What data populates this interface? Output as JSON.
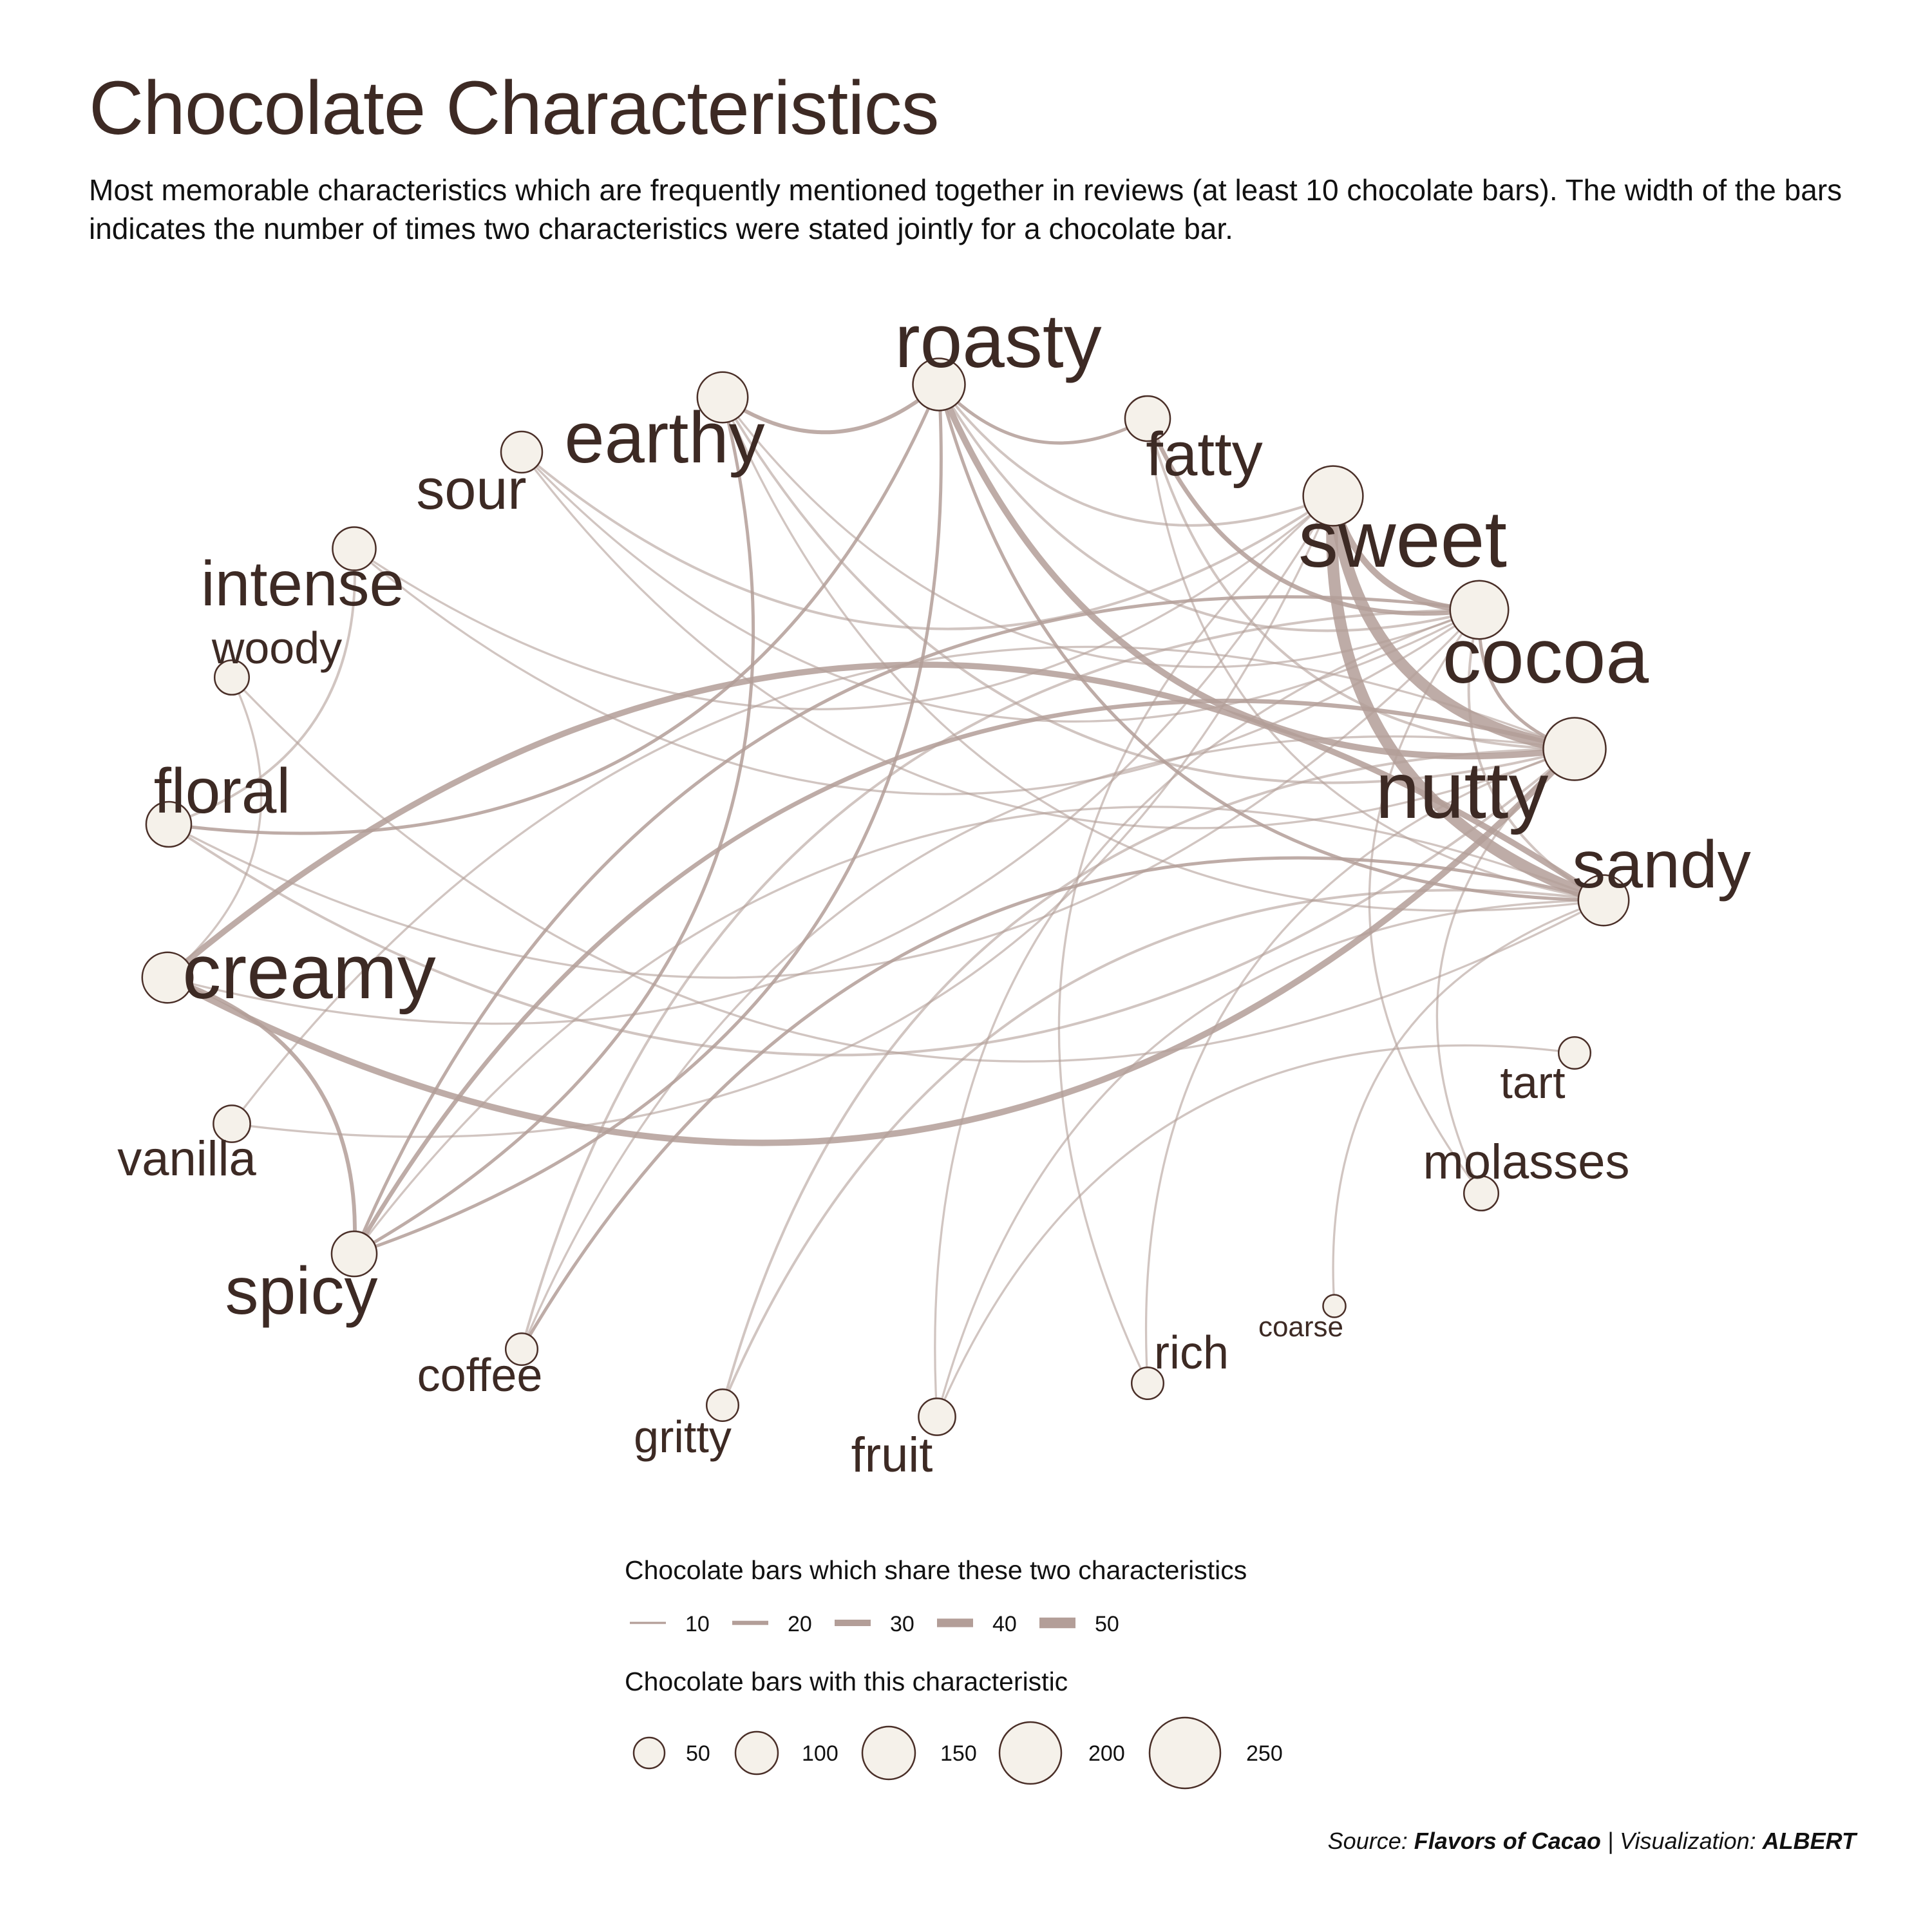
{
  "title": "Chocolate Characteristics",
  "subtitle": "Most memorable characteristics which are frequently mentioned together in reviews (at least 10 chocolate bars). The width of the bars indicates the number of times two characteristics were stated jointly for a chocolate bar.",
  "source": {
    "prefix": "Source: ",
    "dataset": "Flavors of Cacao",
    "separator": " | Visualization: ",
    "author": "ALBERT"
  },
  "colors": {
    "node_fill": "#f5f1ea",
    "node_stroke": "#4a2f28",
    "edge": "#b39e98",
    "text": "#3d2a24"
  },
  "legend": {
    "edge_title": "Chocolate bars which share these two characteristics",
    "edge_items": [
      "10",
      "20",
      "30",
      "40",
      "50"
    ],
    "node_title": "Chocolate bars with this characteristic",
    "node_items": [
      "50",
      "100",
      "150",
      "200",
      "250"
    ]
  },
  "nodes": [
    {
      "id": "roasty",
      "label": "roasty",
      "count": 160
    },
    {
      "id": "earthy",
      "label": "earthy",
      "count": 150
    },
    {
      "id": "fatty",
      "label": "fatty",
      "count": 120
    },
    {
      "id": "sour",
      "label": "sour",
      "count": 100
    },
    {
      "id": "sweet",
      "label": "sweet",
      "count": 210
    },
    {
      "id": "intense",
      "label": "intense",
      "count": 110
    },
    {
      "id": "cocoa",
      "label": "cocoa",
      "count": 200
    },
    {
      "id": "woody",
      "label": "woody",
      "count": 70
    },
    {
      "id": "nutty",
      "label": "nutty",
      "count": 230
    },
    {
      "id": "floral",
      "label": "floral",
      "count": 120
    },
    {
      "id": "sandy",
      "label": "sandy",
      "count": 150
    },
    {
      "id": "creamy",
      "label": "creamy",
      "count": 150
    },
    {
      "id": "tart",
      "label": "tart",
      "count": 60
    },
    {
      "id": "vanilla",
      "label": "vanilla",
      "count": 80
    },
    {
      "id": "molasses",
      "label": "molasses",
      "count": 70
    },
    {
      "id": "spicy",
      "label": "spicy",
      "count": 120
    },
    {
      "id": "coarse",
      "label": "coarse",
      "count": 30
    },
    {
      "id": "coffee",
      "label": "coffee",
      "count": 60
    },
    {
      "id": "rich",
      "label": "rich",
      "count": 60
    },
    {
      "id": "gritty",
      "label": "gritty",
      "count": 60
    },
    {
      "id": "fruit",
      "label": "fruit",
      "count": 80
    }
  ],
  "edges": [
    [
      "sweet",
      "nutty",
      55
    ],
    [
      "sweet",
      "sandy",
      55
    ],
    [
      "roasty",
      "nutty",
      30
    ],
    [
      "sweet",
      "cocoa",
      30
    ],
    [
      "creamy",
      "nutty",
      30
    ],
    [
      "creamy",
      "sandy",
      28
    ],
    [
      "creamy",
      "spicy",
      18
    ],
    [
      "nutty",
      "spicy",
      20
    ],
    [
      "roasty",
      "earthy",
      18
    ],
    [
      "roasty",
      "fatty",
      15
    ],
    [
      "roasty",
      "sandy",
      15
    ],
    [
      "roasty",
      "cocoa",
      12
    ],
    [
      "roasty",
      "spicy",
      15
    ],
    [
      "roasty",
      "sweet",
      12
    ],
    [
      "fatty",
      "cocoa",
      20
    ],
    [
      "fatty",
      "nutty",
      12
    ],
    [
      "earthy",
      "spicy",
      15
    ],
    [
      "earthy",
      "nutty",
      12
    ],
    [
      "earthy",
      "cocoa",
      10
    ],
    [
      "sour",
      "sweet",
      12
    ],
    [
      "intense",
      "floral",
      12
    ],
    [
      "floral",
      "nutty",
      12
    ],
    [
      "floral",
      "roasty",
      15
    ],
    [
      "cocoa",
      "nutty",
      15
    ],
    [
      "cocoa",
      "sandy",
      12
    ],
    [
      "spicy",
      "cocoa",
      15
    ],
    [
      "coffee",
      "cocoa",
      12
    ],
    [
      "coffee",
      "sandy",
      15
    ],
    [
      "gritty",
      "sandy",
      12
    ],
    [
      "gritty",
      "nutty",
      12
    ],
    [
      "fruit",
      "cocoa",
      10
    ],
    [
      "fruit",
      "tart",
      10
    ],
    [
      "rich",
      "nutty",
      10
    ],
    [
      "coarse",
      "sandy",
      10
    ],
    [
      "molasses",
      "nutty",
      10
    ],
    [
      "woody",
      "creamy",
      10
    ],
    [
      "woody",
      "sandy",
      10
    ],
    [
      "intense",
      "sweet",
      10
    ],
    [
      "intense",
      "cocoa",
      10
    ],
    [
      "sour",
      "cocoa",
      10
    ],
    [
      "vanilla",
      "nutty",
      10
    ],
    [
      "vanilla",
      "sweet",
      10
    ],
    [
      "creamy",
      "sweet",
      10
    ],
    [
      "earthy",
      "sandy",
      10
    ],
    [
      "fatty",
      "sandy",
      10
    ],
    [
      "rich",
      "sweet",
      10
    ],
    [
      "molasses",
      "cocoa",
      10
    ],
    [
      "sour",
      "nutty",
      10
    ],
    [
      "floral",
      "cocoa",
      10
    ],
    [
      "coffee",
      "nutty",
      10
    ],
    [
      "spicy",
      "sandy",
      10
    ],
    [
      "fruit",
      "sandy",
      10
    ]
  ]
}
